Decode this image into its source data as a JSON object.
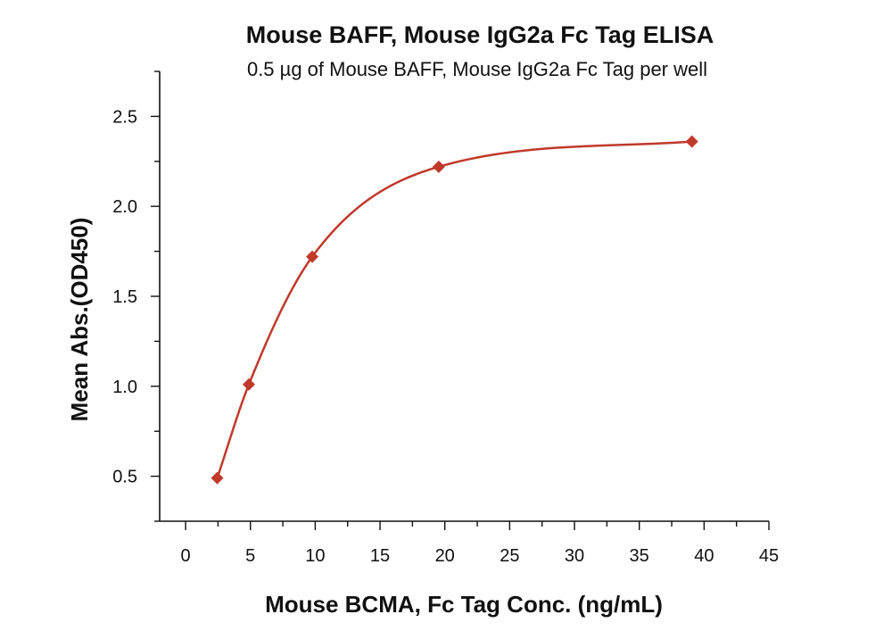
{
  "chart_data": {
    "type": "scatter",
    "title": "Mouse BAFF, Mouse IgG2a Fc Tag ELISA",
    "subtitle": "0.5 µg of Mouse BAFF, Mouse IgG2a Fc Tag per well",
    "xlabel": "Mouse BCMA, Fc Tag Conc. (ng/mL)",
    "ylabel": "Mean Abs.(OD450)",
    "xlim": [
      -2,
      45
    ],
    "ylim": [
      0.25,
      2.75
    ],
    "x_ticks": [
      0,
      5,
      10,
      15,
      20,
      25,
      30,
      35,
      40,
      45
    ],
    "x_tick_labels": [
      "0",
      "5",
      "10",
      "15",
      "20",
      "25",
      "30",
      "35",
      "40",
      "45"
    ],
    "y_ticks": [
      0.5,
      1.0,
      1.5,
      2.0,
      2.5
    ],
    "y_tick_labels": [
      "0.5",
      "1.0",
      "1.5",
      "2.0",
      "2.5"
    ],
    "grid": false,
    "legend": "none",
    "series": [
      {
        "x": [
          2.44,
          4.88,
          9.77,
          19.53,
          39.06
        ],
        "y": [
          0.49,
          1.01,
          1.72,
          2.22,
          2.36
        ],
        "marker": "diamond",
        "color": "#c0392b",
        "fit_curve": true
      }
    ]
  }
}
